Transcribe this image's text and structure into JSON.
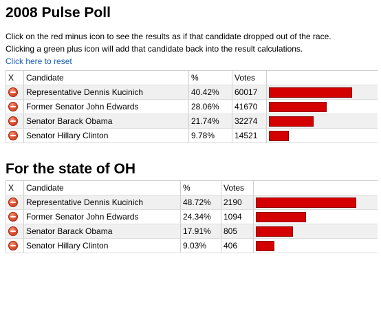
{
  "page": {
    "title": "2008 Pulse Poll",
    "intro_line1": "Click on the red minus icon to see the results as if that candidate dropped out of the race.",
    "intro_line2": "Clicking a green plus icon will add that candidate back into the result calculations.",
    "reset_label": "Click here to reset"
  },
  "national": {
    "headers": {
      "x": "X",
      "candidate": "Candidate",
      "pct": "%",
      "votes": "Votes"
    },
    "rows": [
      {
        "candidate": "Representative Dennis Kucinich",
        "pct": "40.42%",
        "votes": "60017",
        "share": 0.4042
      },
      {
        "candidate": "Former Senator John Edwards",
        "pct": "28.06%",
        "votes": "41670",
        "share": 0.2806
      },
      {
        "candidate": "Senator Barack Obama",
        "pct": "21.74%",
        "votes": "32274",
        "share": 0.2174
      },
      {
        "candidate": "Senator Hillary Clinton",
        "pct": "9.78%",
        "votes": "14521",
        "share": 0.0978
      }
    ]
  },
  "state": {
    "title": "For the state of OH",
    "headers": {
      "x": "X",
      "candidate": "Candidate",
      "pct": "%",
      "votes": "Votes"
    },
    "rows": [
      {
        "candidate": "Representative Dennis Kucinich",
        "pct": "48.72%",
        "votes": "2190",
        "share": 0.4872
      },
      {
        "candidate": "Former Senator John Edwards",
        "pct": "24.34%",
        "votes": "1094",
        "share": 0.2434
      },
      {
        "candidate": "Senator Barack Obama",
        "pct": "17.91%",
        "votes": "805",
        "share": 0.1791
      },
      {
        "candidate": "Senator Hillary Clinton",
        "pct": "9.03%",
        "votes": "406",
        "share": 0.0903
      }
    ]
  },
  "icons": {
    "remove": "minus-circle-icon"
  },
  "colors": {
    "bar": "#d40000",
    "bar_border": "#8b0000",
    "link": "#1a5fb4",
    "row_alt": "#f0f0f0"
  }
}
